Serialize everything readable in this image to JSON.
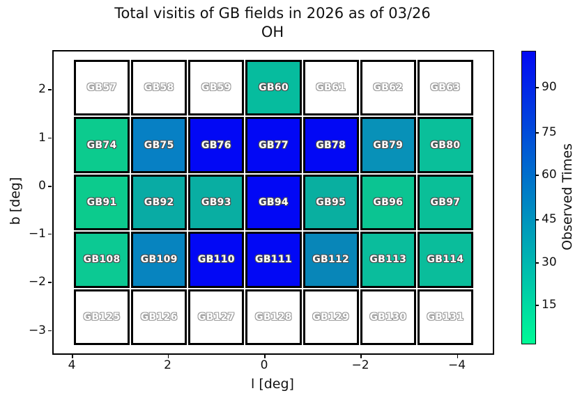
{
  "title": "Total visitis of GB fields in 2026 as of 03/26",
  "subtitle": "OH",
  "chart_data": {
    "type": "heatmap",
    "title": "Total visitis of GB fields in 2026 as of 03/26",
    "subtitle": "OH",
    "xlabel": "l [deg]",
    "ylabel": "b [deg]",
    "x_axis_reversed": true,
    "xticks": [
      "4",
      "2",
      "0",
      "−2",
      "−4"
    ],
    "yticks": [
      "2",
      "1",
      "0",
      "−1",
      "−2",
      "−3"
    ],
    "xlim": [
      4.5,
      -4.6
    ],
    "ylim": [
      -3.35,
      2.65
    ],
    "colormap": "winter_r",
    "colorbar": {
      "label": "Observed Times",
      "ticks": [
        "90",
        "75",
        "60",
        "45",
        "30",
        "15"
      ],
      "vmin_est": 2,
      "vmax_est": 102,
      "gradient_bottom": "#00fa96",
      "gradient_top": "#0109f4"
    },
    "rows": [
      {
        "b_center": 2.2,
        "cells": [
          {
            "label": "GB57",
            "observed": false,
            "value": 0,
            "color": "#ffffff"
          },
          {
            "label": "GB58",
            "observed": false,
            "value": 0,
            "color": "#ffffff"
          },
          {
            "label": "GB59",
            "observed": false,
            "value": 0,
            "color": "#ffffff"
          },
          {
            "label": "GB60",
            "observed": true,
            "value": 28,
            "color": "#06bc9e"
          },
          {
            "label": "GB61",
            "observed": false,
            "value": 0,
            "color": "#ffffff"
          },
          {
            "label": "GB62",
            "observed": false,
            "value": 0,
            "color": "#ffffff"
          },
          {
            "label": "GB63",
            "observed": false,
            "value": 0,
            "color": "#ffffff"
          }
        ]
      },
      {
        "b_center": 1.0,
        "cells": [
          {
            "label": "GB74",
            "observed": true,
            "value": 21,
            "color": "#0ccb8e"
          },
          {
            "label": "GB75",
            "observed": true,
            "value": 52,
            "color": "#0780c4"
          },
          {
            "label": "GB76",
            "observed": true,
            "value": 97,
            "color": "#0208f5"
          },
          {
            "label": "GB77",
            "observed": true,
            "value": 97,
            "color": "#0208f5"
          },
          {
            "label": "GB78",
            "observed": true,
            "value": 97,
            "color": "#0208f5"
          },
          {
            "label": "GB79",
            "observed": true,
            "value": 45,
            "color": "#0891b8"
          },
          {
            "label": "GB80",
            "observed": true,
            "value": 27,
            "color": "#0abf9a"
          }
        ]
      },
      {
        "b_center": -0.2,
        "cells": [
          {
            "label": "GB91",
            "observed": true,
            "value": 21,
            "color": "#0ccb8d"
          },
          {
            "label": "GB92",
            "observed": true,
            "value": 35,
            "color": "#09aba4"
          },
          {
            "label": "GB93",
            "observed": true,
            "value": 35,
            "color": "#09aea2"
          },
          {
            "label": "GB94",
            "observed": true,
            "value": 97,
            "color": "#0208f5"
          },
          {
            "label": "GB95",
            "observed": true,
            "value": 35,
            "color": "#09afa0"
          },
          {
            "label": "GB96",
            "observed": true,
            "value": 25,
            "color": "#0bc492"
          },
          {
            "label": "GB97",
            "observed": true,
            "value": 27,
            "color": "#0abf98"
          }
        ]
      },
      {
        "b_center": -1.5,
        "cells": [
          {
            "label": "GB108",
            "observed": true,
            "value": 22,
            "color": "#0cc993"
          },
          {
            "label": "GB109",
            "observed": true,
            "value": 51,
            "color": "#0784bf"
          },
          {
            "label": "GB110",
            "observed": true,
            "value": 97,
            "color": "#0208f5"
          },
          {
            "label": "GB111",
            "observed": true,
            "value": 97,
            "color": "#0208f5"
          },
          {
            "label": "GB112",
            "observed": true,
            "value": 48,
            "color": "#0886b8"
          },
          {
            "label": "GB113",
            "observed": true,
            "value": 28,
            "color": "#0abd9c"
          },
          {
            "label": "GB114",
            "observed": true,
            "value": 28,
            "color": "#0abd9b"
          }
        ]
      },
      {
        "b_center": -2.8,
        "cells": [
          {
            "label": "GB125",
            "observed": false,
            "value": 0,
            "color": "#ffffff"
          },
          {
            "label": "GB126",
            "observed": false,
            "value": 0,
            "color": "#ffffff"
          },
          {
            "label": "GB127",
            "observed": false,
            "value": 0,
            "color": "#ffffff"
          },
          {
            "label": "GB128",
            "observed": false,
            "value": 0,
            "color": "#ffffff"
          },
          {
            "label": "GB129",
            "observed": false,
            "value": 0,
            "color": "#ffffff"
          },
          {
            "label": "GB130",
            "observed": false,
            "value": 0,
            "color": "#ffffff"
          },
          {
            "label": "GB131",
            "observed": false,
            "value": 0,
            "color": "#ffffff"
          }
        ]
      }
    ]
  }
}
